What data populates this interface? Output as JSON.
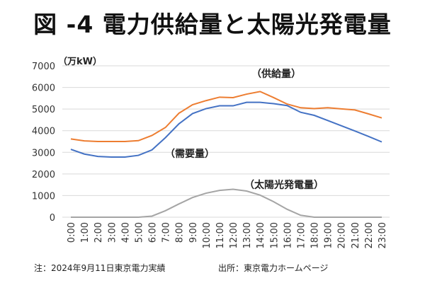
{
  "chart_data": {
    "type": "line",
    "title": "図 -4 電力供給量と太陽光発電量",
    "ylabel": "（万kW）",
    "ylim": [
      0,
      7000
    ],
    "yticks": [
      "0",
      "1000",
      "2000",
      "3000",
      "4000",
      "5000",
      "6000",
      "7000"
    ],
    "grid": true,
    "categories": [
      "0:00",
      "1:00",
      "2:00",
      "3:00",
      "4:00",
      "5:00",
      "6:00",
      "7:00",
      "8:00",
      "9:00",
      "10:00",
      "11:00",
      "12:00",
      "13:00",
      "14:00",
      "15:00",
      "16:00",
      "17:00",
      "18:00",
      "19:00",
      "20:00",
      "21:00",
      "22:00",
      "23:00"
    ],
    "series": [
      {
        "name": "（供給量）",
        "color": "#ED7D31",
        "values": [
          3620,
          3530,
          3500,
          3500,
          3500,
          3540,
          3780,
          4150,
          4810,
          5200,
          5390,
          5550,
          5530,
          5690,
          5810,
          5530,
          5230,
          5060,
          5020,
          5060,
          5010,
          4960,
          4780,
          4590
        ]
      },
      {
        "name": "（需要量）",
        "color": "#4472C4",
        "values": [
          3140,
          2920,
          2810,
          2780,
          2780,
          2860,
          3110,
          3680,
          4320,
          4790,
          5020,
          5150,
          5150,
          5310,
          5310,
          5250,
          5160,
          4850,
          4710,
          4470,
          4230,
          3990,
          3740,
          3480
        ]
      },
      {
        "name": "（太陽光発電量）",
        "color": "#A5A5A5",
        "values": [
          0,
          0,
          0,
          0,
          0,
          0,
          50,
          300,
          615,
          910,
          1110,
          1240,
          1290,
          1210,
          1020,
          715,
          365,
          90,
          0,
          0,
          0,
          0,
          0,
          0
        ]
      }
    ]
  },
  "footer": {
    "note": "注：2024年9月11日東京電力実績",
    "source": "出所：東京電力ホームページ"
  }
}
